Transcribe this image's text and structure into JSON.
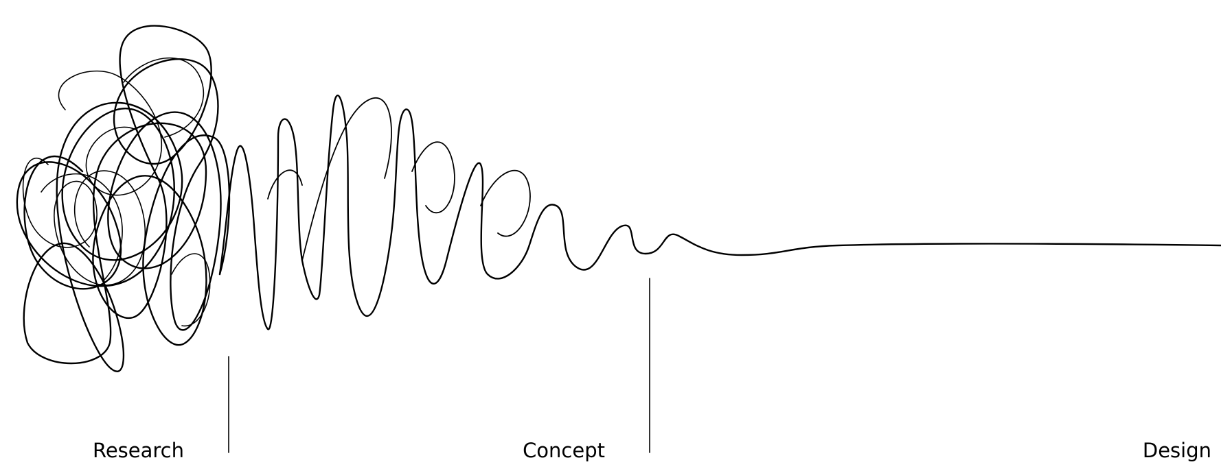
{
  "stages": {
    "research": "Research",
    "concept": "Concept",
    "design": "Design"
  },
  "colors": {
    "line": "#000000",
    "background": "#ffffff"
  }
}
